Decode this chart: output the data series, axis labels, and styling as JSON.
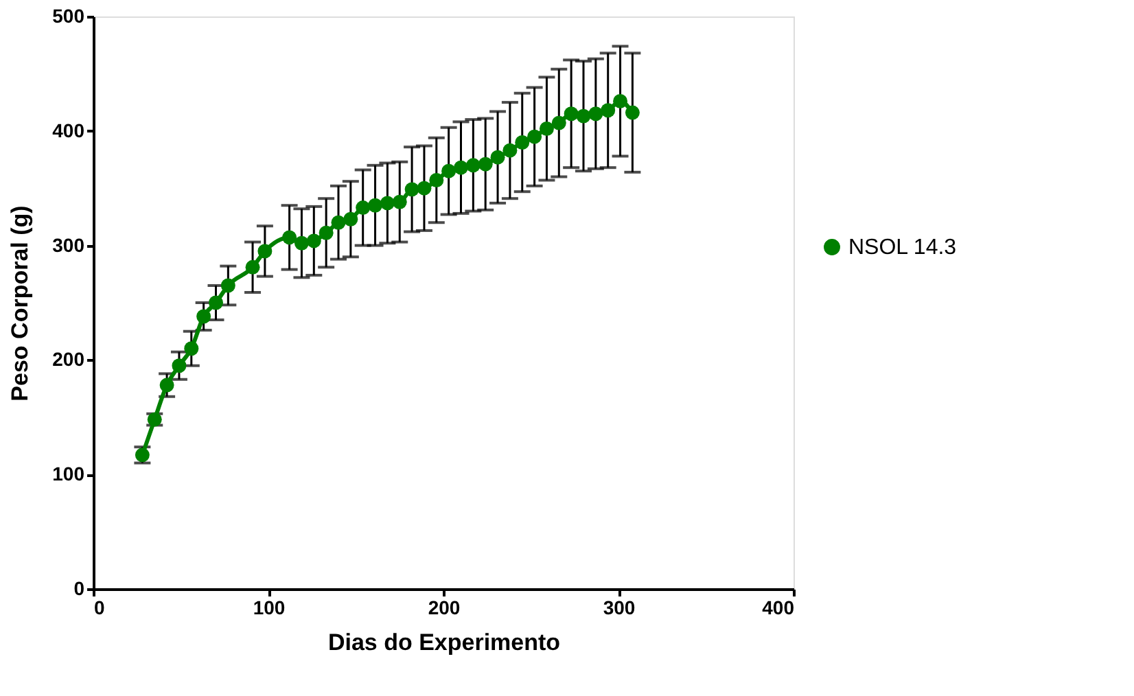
{
  "chart_data": {
    "type": "line",
    "xlabel": "Dias do Experimento",
    "ylabel": "Peso Corporal (g)",
    "x": [
      28,
      35,
      42,
      49,
      56,
      63,
      70,
      77,
      91,
      98,
      112,
      119,
      126,
      133,
      140,
      147,
      154,
      161,
      168,
      175,
      182,
      189,
      196,
      203,
      210,
      217,
      224,
      231,
      238,
      245,
      252,
      259,
      266,
      273,
      280,
      287,
      294,
      301,
      308
    ],
    "series": [
      {
        "name": "NSOL 14.3",
        "color": "#008000",
        "values": [
          117,
          148,
          178,
          195,
          210,
          238,
          250,
          265,
          281,
          295,
          307,
          302,
          304,
          311,
          320,
          323,
          333,
          335,
          337,
          338,
          349,
          350,
          357,
          365,
          368,
          370,
          371,
          377,
          383,
          390,
          395,
          402,
          407,
          415,
          413,
          415,
          418,
          426,
          416
        ],
        "errors": [
          7,
          5,
          10,
          12,
          15,
          12,
          15,
          17,
          22,
          22,
          28,
          30,
          30,
          30,
          32,
          33,
          33,
          35,
          35,
          35,
          37,
          37,
          37,
          38,
          40,
          40,
          40,
          40,
          42,
          43,
          43,
          45,
          47,
          47,
          48,
          48,
          50,
          48,
          52
        ]
      }
    ],
    "xlim": [
      0,
      400
    ],
    "xticks": [
      0,
      100,
      200,
      300,
      400
    ],
    "ylim": [
      0,
      500
    ],
    "yticks": [
      0,
      100,
      200,
      300,
      400,
      500
    ],
    "grid": false,
    "legend": "right",
    "marker": "circle",
    "line_style": "solid"
  }
}
